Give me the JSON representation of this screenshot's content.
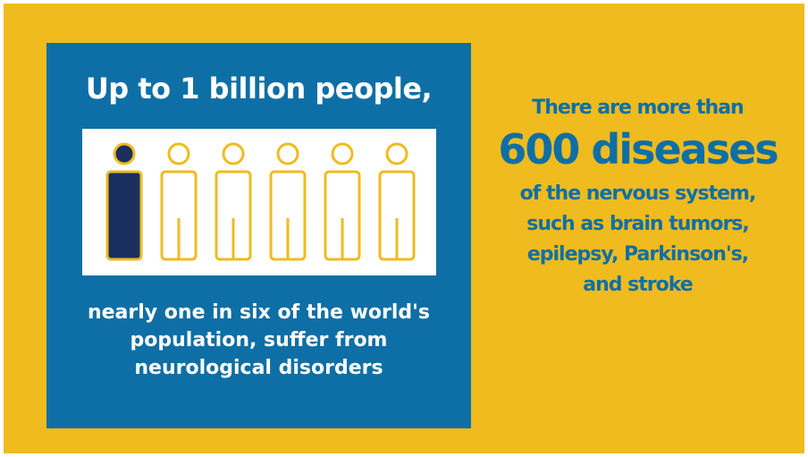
{
  "left": {
    "title": "Up to 1 billion people,",
    "figures": {
      "filled_count": 1,
      "total_count": 6
    },
    "caption_lines": [
      "nearly one in six of the world's",
      "population, suffer from",
      "neurological disorders"
    ]
  },
  "right": {
    "line1": "There are more than",
    "highlight": "600 diseases",
    "lines": [
      "of the nervous system,",
      "such as brain tumors,",
      "epilepsy, Parkinson's,",
      "and stroke"
    ]
  },
  "colors": {
    "background": "#efbb1f",
    "panel": "#0e6fa6",
    "figure_filled": "#1b2f5e",
    "figure_outline": "#efbb1f",
    "text_light": "#ffffff",
    "text_accent": "#0e6fa6"
  }
}
